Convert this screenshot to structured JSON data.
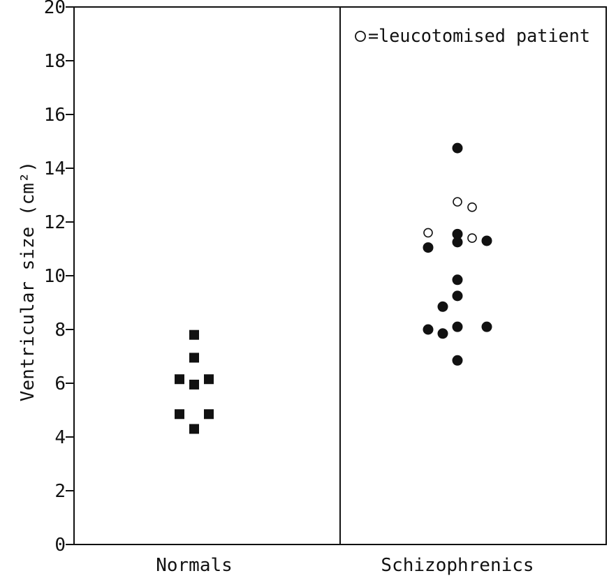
{
  "chart_data": {
    "type": "scatter",
    "ylabel": "Ventricular size (cm²)",
    "ylim": [
      0,
      20
    ],
    "yticks": [
      "0",
      "2",
      "4",
      "6",
      "8",
      "10",
      "12",
      "14",
      "16",
      "18",
      "20"
    ],
    "categories": [
      "Normals",
      "Schizophrenics"
    ],
    "legend": {
      "text": "=leucotomised patient",
      "marker": "open-circle",
      "placement": "top-right"
    },
    "grid": false,
    "series": [
      {
        "category": "Normals",
        "marker": "filled-square",
        "points": [
          {
            "offset": 0,
            "y": 7.8
          },
          {
            "offset": 0,
            "y": 6.95
          },
          {
            "offset": -1,
            "y": 6.15
          },
          {
            "offset": 0,
            "y": 5.95
          },
          {
            "offset": 1,
            "y": 6.15
          },
          {
            "offset": -1,
            "y": 4.85
          },
          {
            "offset": 1,
            "y": 4.85
          },
          {
            "offset": 0,
            "y": 4.3
          }
        ]
      },
      {
        "category": "Schizophrenics",
        "marker": "filled-circle",
        "points": [
          {
            "offset": 0,
            "y": 14.75
          },
          {
            "offset": 0,
            "y": 11.55
          },
          {
            "offset": 0,
            "y": 11.25
          },
          {
            "offset": -2,
            "y": 11.05
          },
          {
            "offset": 2,
            "y": 11.3
          },
          {
            "offset": 0,
            "y": 9.85
          },
          {
            "offset": 0,
            "y": 9.25
          },
          {
            "offset": -1,
            "y": 8.85
          },
          {
            "offset": -2,
            "y": 8.0
          },
          {
            "offset": -1,
            "y": 7.85
          },
          {
            "offset": 0,
            "y": 8.1
          },
          {
            "offset": 2,
            "y": 8.1
          },
          {
            "offset": 0,
            "y": 6.85
          }
        ]
      },
      {
        "category": "Schizophrenics",
        "marker": "open-circle",
        "label": "leucotomised patient",
        "points": [
          {
            "offset": 0,
            "y": 12.75
          },
          {
            "offset": 1,
            "y": 12.55
          },
          {
            "offset": -2,
            "y": 11.6
          },
          {
            "offset": 1,
            "y": 11.4
          }
        ]
      }
    ],
    "colors": {
      "ink": "#111111",
      "background": "#ffffff"
    }
  }
}
